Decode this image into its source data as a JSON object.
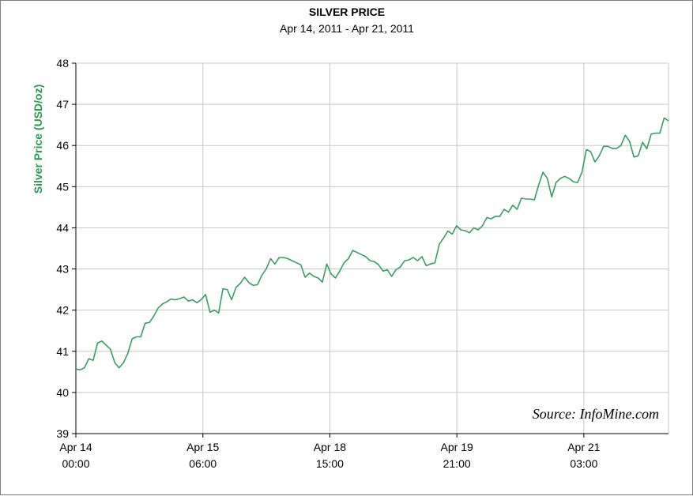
{
  "colors": {
    "series": "#3a9e63",
    "axis_label": "#2b9a4f",
    "grid": "#c8c8c8",
    "axis": "#000000"
  },
  "chart_data": {
    "type": "line",
    "title": "SILVER PRICE",
    "subtitle": "Apr 14, 2011 - Apr 21, 2011",
    "xlabel": "",
    "ylabel": "Silver Price (USD/oz)",
    "ylim": [
      39,
      48
    ],
    "yticks": [
      39,
      40,
      41,
      42,
      43,
      44,
      45,
      46,
      47,
      48
    ],
    "xlim": [
      0,
      140
    ],
    "xticks": [
      {
        "x": 0,
        "line1": "Apr 14",
        "line2": "00:00"
      },
      {
        "x": 30,
        "line1": "Apr 15",
        "line2": "06:00"
      },
      {
        "x": 60,
        "line1": "Apr 18",
        "line2": "15:00"
      },
      {
        "x": 90,
        "line1": "Apr 19",
        "line2": "21:00"
      },
      {
        "x": 120,
        "line1": "Apr 21",
        "line2": "03:00"
      }
    ],
    "grid": true,
    "legend": "none",
    "annotation": "Source: InfoMine.com",
    "series": [
      {
        "values": [
          40.57,
          40.55,
          40.6,
          40.82,
          40.78,
          41.2,
          41.25,
          41.15,
          41.05,
          40.72,
          40.6,
          40.72,
          40.95,
          41.3,
          41.35,
          41.35,
          41.68,
          41.7,
          41.85,
          42.05,
          42.15,
          42.2,
          42.27,
          42.25,
          42.28,
          42.32,
          42.22,
          42.25,
          42.18,
          42.26,
          42.38,
          41.95,
          42.0,
          41.93,
          42.52,
          42.5,
          42.25,
          42.55,
          42.65,
          42.8,
          42.67,
          42.6,
          42.62,
          42.85,
          43.0,
          43.25,
          43.12,
          43.28,
          43.28,
          43.25,
          43.2,
          43.15,
          43.1,
          42.8,
          42.9,
          42.82,
          42.78,
          42.68,
          43.12,
          42.88,
          42.78,
          42.95,
          43.15,
          43.25,
          43.45,
          43.4,
          43.35,
          43.3,
          43.2,
          43.18,
          43.1,
          42.95,
          42.98,
          42.82,
          42.98,
          43.05,
          43.2,
          43.22,
          43.28,
          43.2,
          43.3,
          43.08,
          43.12,
          43.15,
          43.6,
          43.75,
          43.92,
          43.85,
          44.05,
          43.95,
          43.93,
          43.88,
          44.0,
          43.95,
          44.05,
          44.25,
          44.22,
          44.28,
          44.28,
          44.45,
          44.38,
          44.55,
          44.45,
          44.72,
          44.7,
          44.7,
          44.68,
          45.05,
          45.35,
          45.2,
          44.75,
          45.1,
          45.2,
          45.25,
          45.2,
          45.12,
          45.1,
          45.35,
          45.9,
          45.85,
          45.6,
          45.75,
          45.98,
          45.98,
          45.93,
          45.93,
          46.0,
          46.25,
          46.1,
          45.72,
          45.75,
          46.08,
          45.92,
          46.28,
          46.3,
          46.3,
          46.67,
          46.6
        ]
      }
    ]
  }
}
